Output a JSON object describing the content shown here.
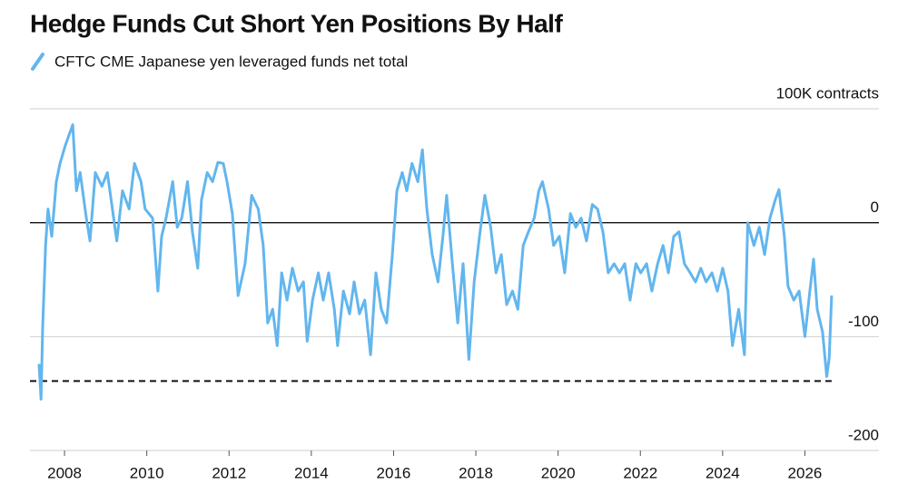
{
  "chart_data": {
    "type": "line",
    "title": "Hedge Funds Cut Short Yen Positions By Half",
    "series": [
      {
        "name": "CFTC CME Japanese yen leveraged funds net total",
        "color": "#62b6ee",
        "x": [
          2007.38,
          2007.43,
          2007.47,
          2007.54,
          2007.6,
          2007.69,
          2007.8,
          2007.89,
          2008.02,
          2008.2,
          2008.29,
          2008.38,
          2008.53,
          2008.62,
          2008.75,
          2008.91,
          2009.04,
          2009.18,
          2009.27,
          2009.41,
          2009.57,
          2009.7,
          2009.86,
          2009.96,
          2010.14,
          2010.27,
          2010.36,
          2010.47,
          2010.63,
          2010.74,
          2010.85,
          2010.99,
          2011.11,
          2011.24,
          2011.33,
          2011.47,
          2011.6,
          2011.73,
          2011.86,
          2011.95,
          2012.08,
          2012.22,
          2012.39,
          2012.55,
          2012.71,
          2012.83,
          2012.94,
          2013.06,
          2013.17,
          2013.28,
          2013.41,
          2013.54,
          2013.68,
          2013.81,
          2013.9,
          2014.03,
          2014.17,
          2014.29,
          2014.42,
          2014.56,
          2014.64,
          2014.78,
          2014.93,
          2015.04,
          2015.17,
          2015.3,
          2015.44,
          2015.57,
          2015.7,
          2015.83,
          2015.97,
          2016.08,
          2016.21,
          2016.32,
          2016.45,
          2016.59,
          2016.7,
          2016.81,
          2016.94,
          2017.08,
          2017.2,
          2017.29,
          2017.43,
          2017.56,
          2017.69,
          2017.83,
          2017.96,
          2018.09,
          2018.22,
          2018.36,
          2018.49,
          2018.62,
          2018.75,
          2018.89,
          2019.02,
          2019.15,
          2019.28,
          2019.42,
          2019.53,
          2019.62,
          2019.77,
          2019.89,
          2020.03,
          2020.16,
          2020.3,
          2020.43,
          2020.56,
          2020.69,
          2020.83,
          2020.96,
          2021.09,
          2021.22,
          2021.36,
          2021.49,
          2021.62,
          2021.75,
          2021.89,
          2022.01,
          2022.15,
          2022.28,
          2022.42,
          2022.55,
          2022.68,
          2022.81,
          2022.94,
          2023.07,
          2023.21,
          2023.34,
          2023.47,
          2023.6,
          2023.74,
          2023.87,
          2024.0,
          2024.13,
          2024.24,
          2024.39,
          2024.53,
          2024.61,
          2024.76,
          2024.89,
          2025.02,
          2025.15,
          2025.28,
          2025.37,
          2025.5,
          2025.59,
          2025.73,
          2025.86,
          2026.0,
          2026.12,
          2026.21,
          2026.3,
          2026.43,
          2026.53,
          2026.59,
          2026.65
        ],
        "values": [
          -124,
          -155,
          -92,
          -20,
          12,
          -12,
          36,
          52,
          68,
          86,
          28,
          44,
          4,
          -16,
          44,
          32,
          44,
          8,
          -16,
          28,
          12,
          52,
          36,
          12,
          4,
          -60,
          -12,
          4,
          36,
          -4,
          4,
          36,
          -8,
          -40,
          20,
          44,
          36,
          53,
          52,
          36,
          8,
          -64,
          -36,
          24,
          12,
          -20,
          -88,
          -76,
          -108,
          -44,
          -68,
          -40,
          -60,
          -52,
          -104,
          -68,
          -44,
          -68,
          -44,
          -76,
          -108,
          -60,
          -80,
          -52,
          -80,
          -68,
          -116,
          -44,
          -76,
          -88,
          -28,
          28,
          44,
          28,
          52,
          36,
          64,
          12,
          -28,
          -52,
          -12,
          24,
          -36,
          -88,
          -36,
          -120,
          -52,
          -12,
          24,
          -4,
          -44,
          -28,
          -72,
          -60,
          -76,
          -20,
          -8,
          4,
          28,
          36,
          12,
          -20,
          -12,
          -44,
          8,
          -4,
          4,
          -16,
          16,
          12,
          -8,
          -44,
          -36,
          -44,
          -36,
          -68,
          -36,
          -44,
          -36,
          -60,
          -36,
          -20,
          -44,
          -12,
          -8,
          -36,
          -44,
          -52,
          -40,
          -52,
          -44,
          -60,
          -40,
          -60,
          -108,
          -76,
          -116,
          0,
          -20,
          -4,
          -28,
          4,
          20,
          29,
          -12,
          -56,
          -68,
          -60,
          -100,
          -60,
          -32,
          -76,
          -96,
          -135,
          -119,
          -64
        ]
      }
    ],
    "hline": {
      "value": -139,
      "style": "dashed"
    },
    "xlim": [
      2007.16,
      2027.8
    ],
    "xticks": [
      2008,
      2010,
      2012,
      2014,
      2016,
      2018,
      2020,
      2022,
      2024,
      2026
    ],
    "ylim": [
      -200,
      100
    ],
    "yticks": [
      {
        "value": 100,
        "label": "100K contracts"
      },
      0,
      -100,
      -200
    ],
    "grid": true
  }
}
